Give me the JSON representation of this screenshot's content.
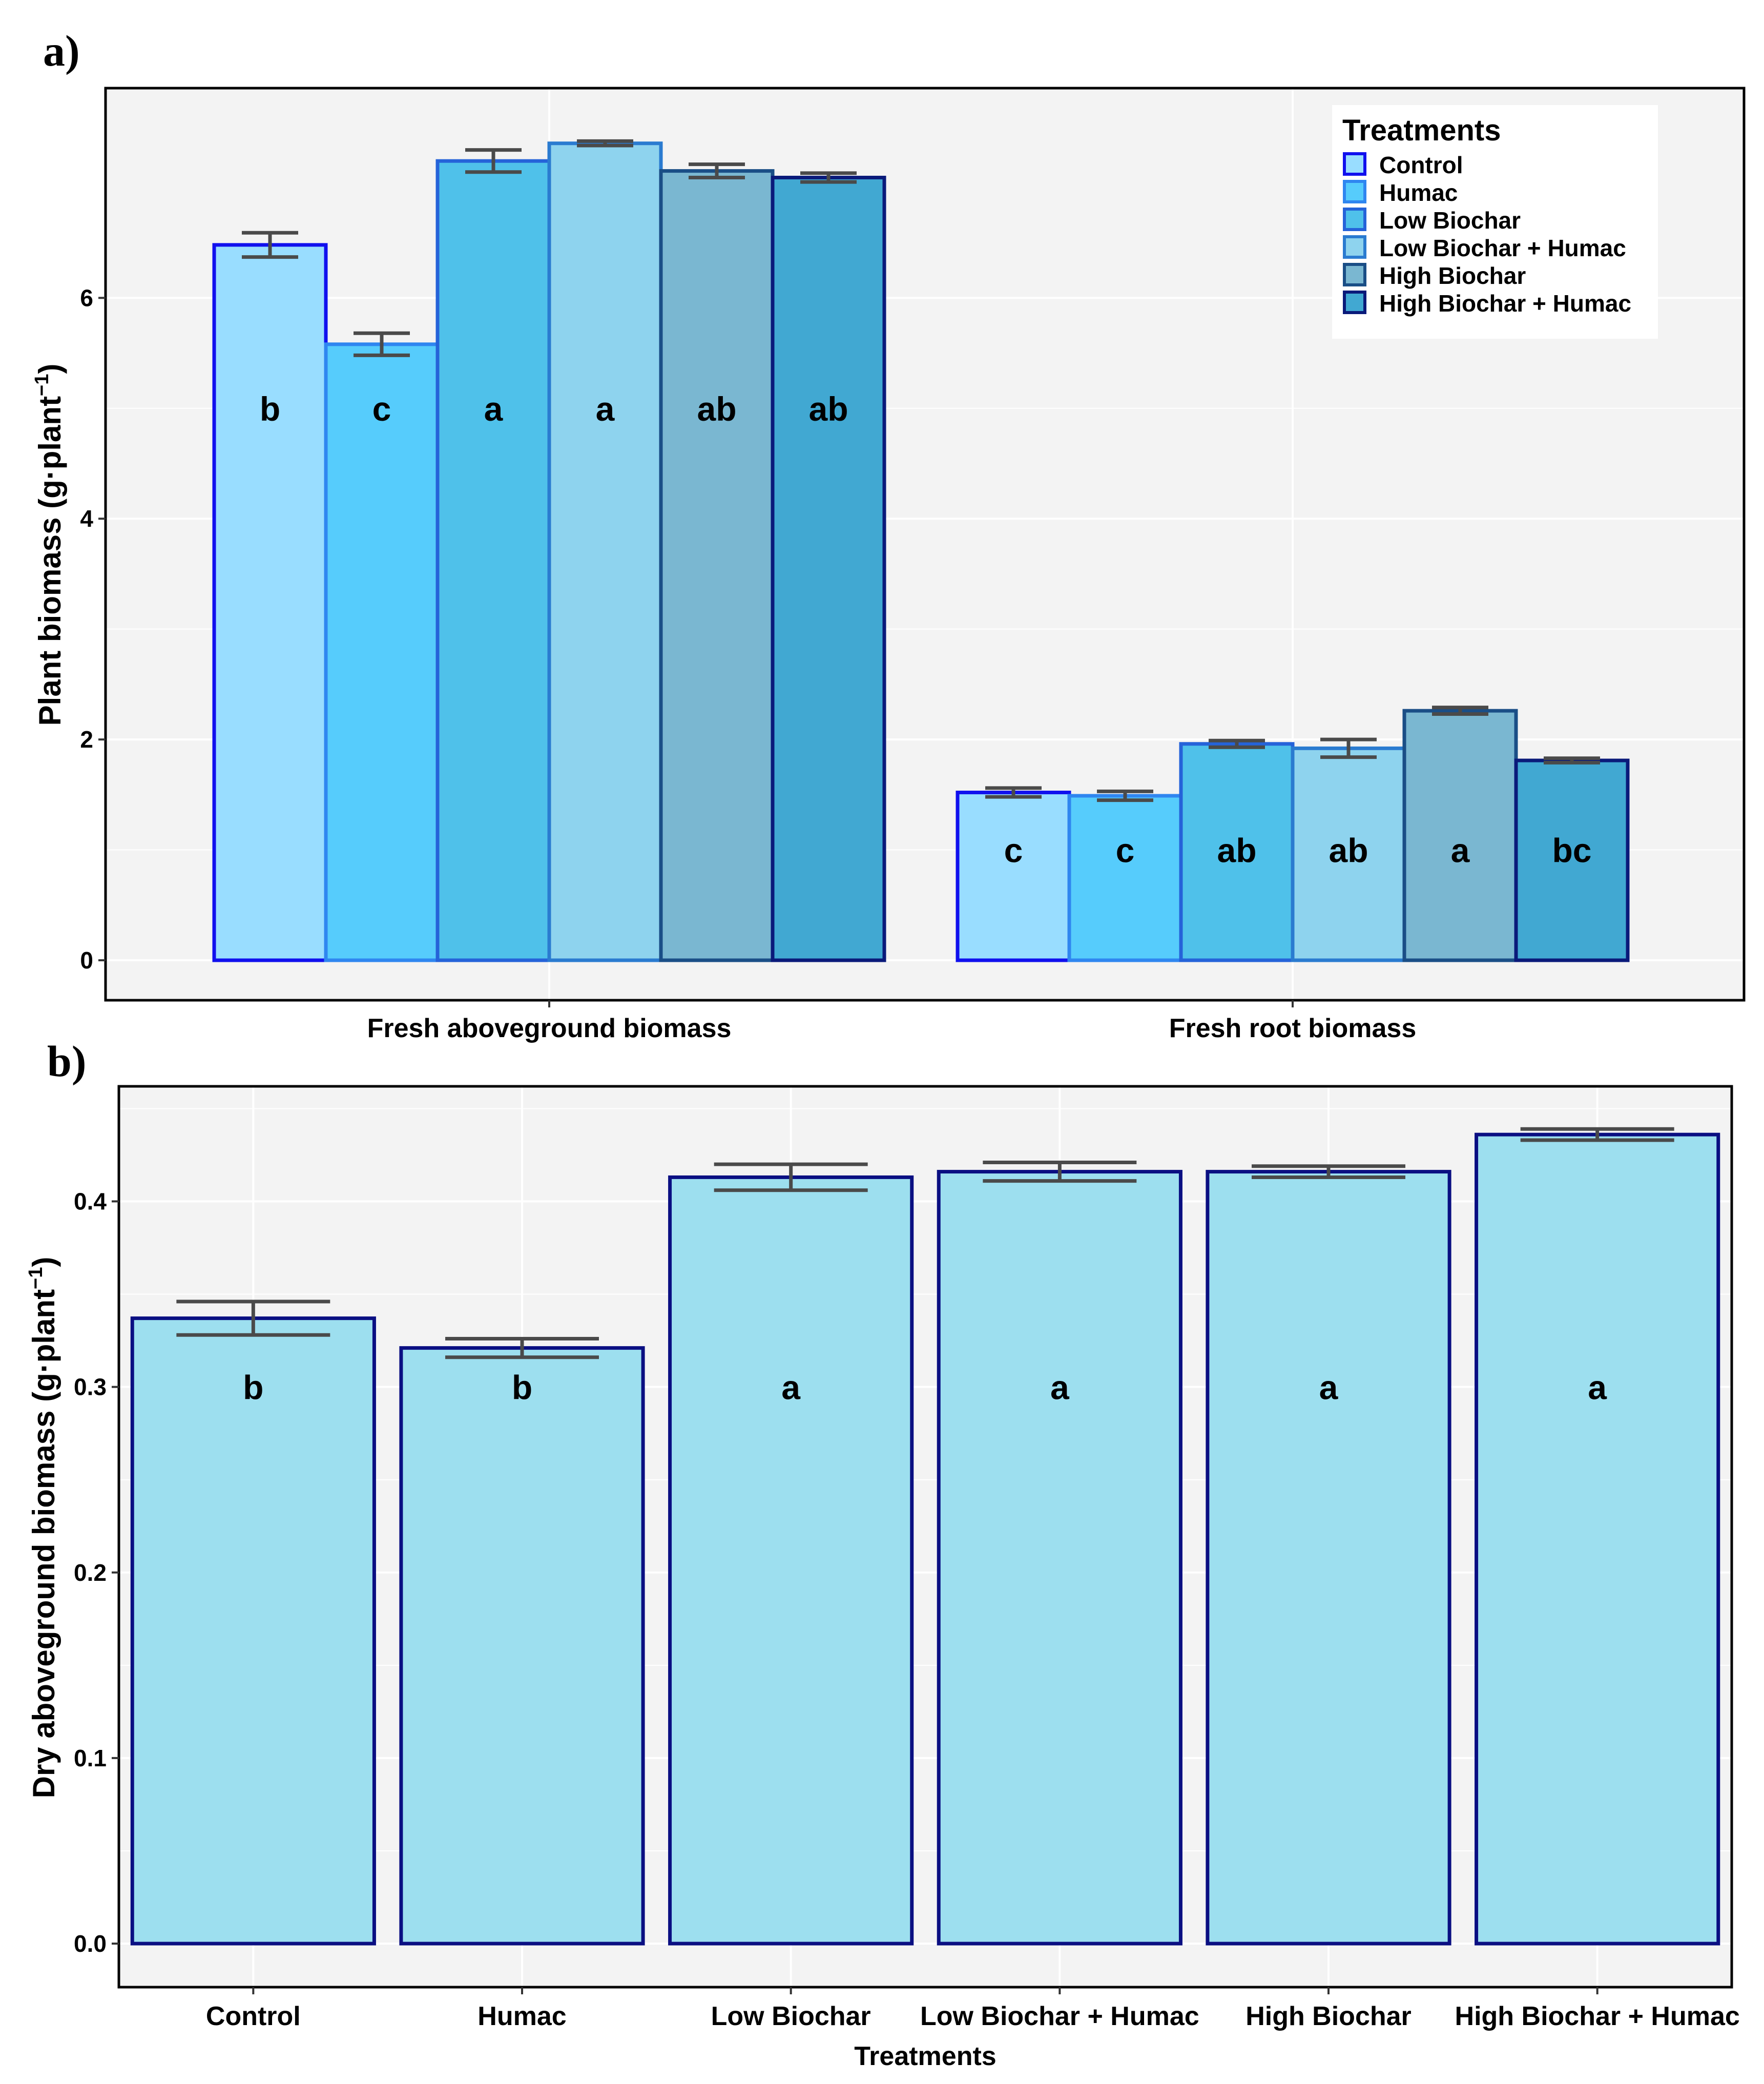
{
  "chart_data": [
    {
      "panel": "a)",
      "type": "bar",
      "ylabel": "Plant biomass (g·plant",
      "ylabel_sup": "−1",
      "ylabel_close": ")",
      "yticks": [
        "0",
        "2",
        "4",
        "6"
      ],
      "ylim": [
        0,
        7.9
      ],
      "grid": true,
      "legend": {
        "title": "Treatments",
        "placement": "top-right",
        "items": [
          "Control",
          "Humac",
          "Low Biochar",
          "Low Biochar + Humac",
          "High Biochar",
          "High Biochar + Humac"
        ]
      },
      "categories": [
        "Fresh aboveground biomass",
        "Fresh root biomass"
      ],
      "series": [
        {
          "name": "Control",
          "fill": "#99DDFF",
          "stroke": "#1010EE",
          "values": [
            6.48,
            1.52
          ],
          "errors": [
            0.11,
            0.04
          ],
          "letters": [
            "b",
            "c"
          ]
        },
        {
          "name": "Humac",
          "fill": "#56CCFC",
          "stroke": "#2F86F0",
          "values": [
            5.58,
            1.49
          ],
          "errors": [
            0.1,
            0.04
          ],
          "letters": [
            "c",
            "c"
          ]
        },
        {
          "name": "Low Biochar",
          "fill": "#4FC1EA",
          "stroke": "#2563D9",
          "values": [
            7.24,
            1.96
          ],
          "errors": [
            0.1,
            0.03
          ],
          "letters": [
            "a",
            "ab"
          ]
        },
        {
          "name": "Low Biochar + Humac",
          "fill": "#8ED3EE",
          "stroke": "#2A7BD0",
          "values": [
            7.4,
            1.92
          ],
          "errors": [
            0.02,
            0.08
          ],
          "letters": [
            "a",
            "ab"
          ]
        },
        {
          "name": "High Biochar",
          "fill": "#7AB7D1",
          "stroke": "#1A4E86",
          "values": [
            7.15,
            2.26
          ],
          "errors": [
            0.06,
            0.03
          ],
          "letters": [
            "ab",
            "a"
          ]
        },
        {
          "name": "High Biochar + Humac",
          "fill": "#41A8D2",
          "stroke": "#0A1A7A",
          "values": [
            7.09,
            1.81
          ],
          "errors": [
            0.04,
            0.02
          ],
          "letters": [
            "ab",
            "bc"
          ]
        }
      ]
    },
    {
      "panel": "b)",
      "type": "bar",
      "ylabel": "Dry aboveground biomass (g·plant",
      "ylabel_sup": "−1",
      "ylabel_close": ")",
      "xlabel": "Treatments",
      "yticks": [
        "0.0",
        "0.1",
        "0.2",
        "0.3",
        "0.4"
      ],
      "ylim": [
        0,
        0.462
      ],
      "grid": true,
      "fill": "#9DDFEF",
      "stroke": "#0A0F82",
      "categories": [
        "Control",
        "Humac",
        "Low Biochar",
        "Low Biochar + Humac",
        "High Biochar",
        "High Biochar + Humac"
      ],
      "values": [
        0.337,
        0.321,
        0.413,
        0.416,
        0.416,
        0.436
      ],
      "errors": [
        0.009,
        0.005,
        0.007,
        0.005,
        0.003,
        0.003
      ],
      "letters": [
        "b",
        "b",
        "a",
        "a",
        "a",
        "a"
      ]
    }
  ]
}
